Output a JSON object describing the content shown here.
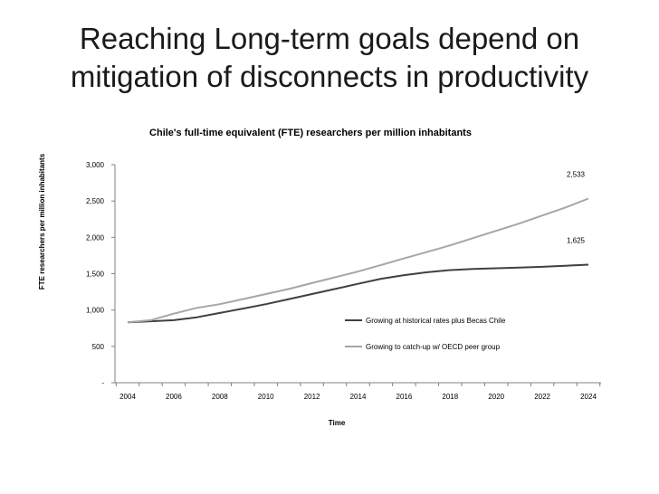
{
  "slide": {
    "title_line1": "Reaching Long-term goals depend on",
    "title_line2": "mitigation of disconnects in productivity"
  },
  "chart_data": {
    "type": "line",
    "title": "Chile's full-time equivalent (FTE) researchers per million inhabitants",
    "xlabel": "Time",
    "ylabel": "FTE researchers per million inhabitants",
    "xlim": [
      2004,
      2024
    ],
    "ylim": [
      0,
      3000
    ],
    "x_ticks": [
      "2004",
      "2006",
      "2008",
      "2010",
      "2012",
      "2014",
      "2016",
      "2018",
      "2020",
      "2022",
      "2024"
    ],
    "y_ticks": [
      {
        "value": 0,
        "label": "-"
      },
      {
        "value": 500,
        "label": "500"
      },
      {
        "value": 1000,
        "label": "1,000"
      },
      {
        "value": 1500,
        "label": "1,500"
      },
      {
        "value": 2000,
        "label": "2,000"
      },
      {
        "value": 2500,
        "label": "2,500"
      },
      {
        "value": 3000,
        "label": "3,000"
      }
    ],
    "grid": false,
    "legend_position": "center-right",
    "x": [
      2004,
      2005,
      2006,
      2007,
      2008,
      2009,
      2010,
      2011,
      2012,
      2013,
      2014,
      2015,
      2016,
      2017,
      2018,
      2019,
      2020,
      2021,
      2022,
      2023,
      2024
    ],
    "series": [
      {
        "name": "Growing at historical rates plus Becas Chile",
        "color": "#404040",
        "values": [
          830,
          845,
          860,
          900,
          960,
          1020,
          1080,
          1150,
          1220,
          1290,
          1360,
          1430,
          1480,
          1520,
          1550,
          1565,
          1575,
          1585,
          1595,
          1610,
          1625
        ],
        "end_label": "1,625"
      },
      {
        "name": "Growing to catch-up w/ OECD peer group",
        "color": "#a6a6a6",
        "values": [
          830,
          860,
          950,
          1030,
          1080,
          1150,
          1220,
          1290,
          1370,
          1450,
          1530,
          1620,
          1710,
          1800,
          1890,
          1990,
          2090,
          2190,
          2300,
          2410,
          2533
        ],
        "end_label": "2,533"
      }
    ]
  }
}
